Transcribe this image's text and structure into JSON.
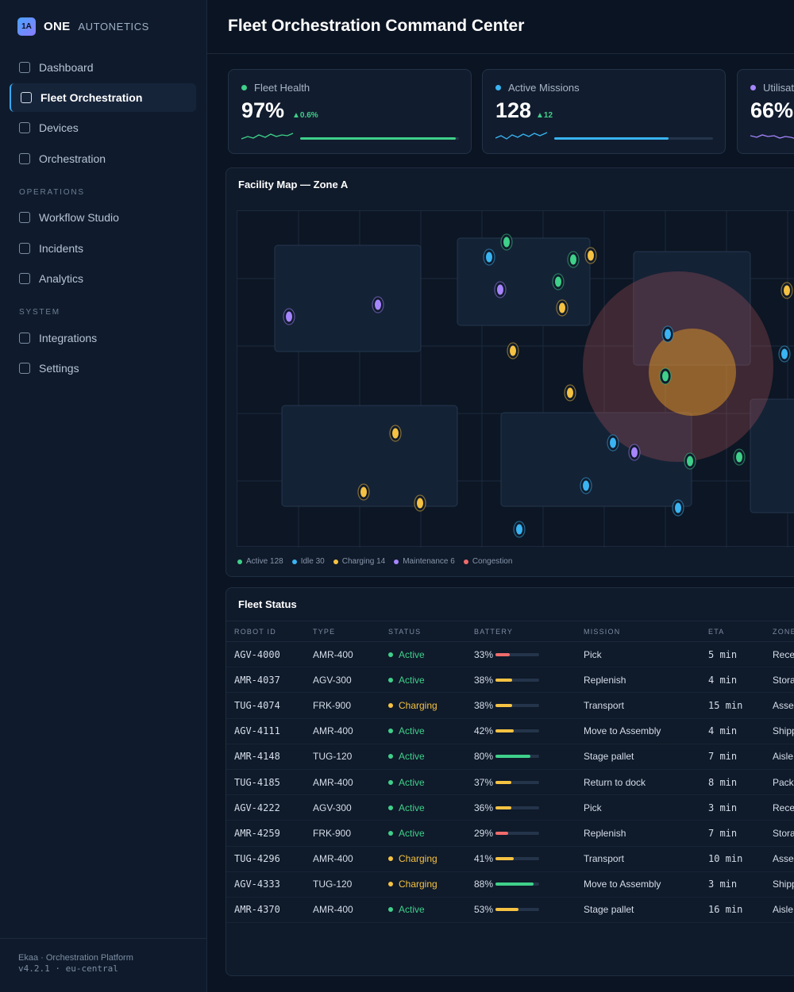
{
  "brand": {
    "logo": "1A",
    "name": "ONE",
    "subtitle": "AUTONETICS"
  },
  "sidebar": {
    "items": [
      {
        "label": "Dashboard",
        "active": false
      },
      {
        "label": "Fleet Orchestration",
        "active": true
      },
      {
        "label": "Devices",
        "active": false
      },
      {
        "label": "Orchestration",
        "active": false
      }
    ],
    "sections": [
      {
        "title": "OPERATIONS",
        "items": [
          {
            "label": "Workflow Studio"
          },
          {
            "label": "Incidents"
          },
          {
            "label": "Analytics"
          }
        ]
      },
      {
        "title": "SYSTEM",
        "items": [
          {
            "label": "Integrations"
          },
          {
            "label": "Settings"
          }
        ]
      }
    ],
    "footer": {
      "line1": "Ekaa · Orchestration Platform",
      "line2": "v4.2.1 · eu-central"
    }
  },
  "header": {
    "title": "Fleet Orchestration Command Center"
  },
  "kpis": [
    {
      "label": "Fleet Health",
      "value": "97%",
      "delta": "▲0.6%",
      "color": "#3fd08a",
      "progress": 0.98
    },
    {
      "label": "Active Missions",
      "value": "128",
      "delta": "▲12",
      "color": "#3ab4f2",
      "progress": 0.72
    },
    {
      "label": "Utilisation",
      "value": "66%",
      "delta": "",
      "color": "#a685ff",
      "progress": 0.66
    }
  ],
  "map": {
    "title": "Facility Map — Zone A",
    "legend": [
      {
        "label": "Active 128",
        "color": "#3fd08a"
      },
      {
        "label": "Idle 30",
        "color": "#3ab4f2"
      },
      {
        "label": "Charging 14",
        "color": "#f5c242"
      },
      {
        "label": "Maintenance 6",
        "color": "#a685ff"
      },
      {
        "label": "Congestion",
        "color": "#f06b6b"
      }
    ]
  },
  "fleet": {
    "title": "Fleet Status",
    "columns": [
      "ROBOT ID",
      "TYPE",
      "STATUS",
      "BATTERY",
      "MISSION",
      "ETA",
      "ZONE"
    ],
    "rows": [
      {
        "id": "AGV-4000",
        "type": "AMR-400",
        "status": "Active",
        "battery": 33,
        "mission": "Pick",
        "eta": "5 min",
        "zone": "Rece"
      },
      {
        "id": "AMR-4037",
        "type": "AGV-300",
        "status": "Active",
        "battery": 38,
        "mission": "Replenish",
        "eta": "4 min",
        "zone": "Stora"
      },
      {
        "id": "TUG-4074",
        "type": "FRK-900",
        "status": "Charging",
        "battery": 38,
        "mission": "Transport",
        "eta": "15 min",
        "zone": "Asse"
      },
      {
        "id": "AGV-4111",
        "type": "AMR-400",
        "status": "Active",
        "battery": 42,
        "mission": "Move to Assembly",
        "eta": "4 min",
        "zone": "Shipp"
      },
      {
        "id": "AMR-4148",
        "type": "TUG-120",
        "status": "Active",
        "battery": 80,
        "mission": "Stage pallet",
        "eta": "7 min",
        "zone": "Aisle"
      },
      {
        "id": "TUG-4185",
        "type": "AMR-400",
        "status": "Active",
        "battery": 37,
        "mission": "Return to dock",
        "eta": "8 min",
        "zone": "Pack"
      },
      {
        "id": "AGV-4222",
        "type": "AGV-300",
        "status": "Active",
        "battery": 36,
        "mission": "Pick",
        "eta": "3 min",
        "zone": "Rece"
      },
      {
        "id": "AMR-4259",
        "type": "FRK-900",
        "status": "Active",
        "battery": 29,
        "mission": "Replenish",
        "eta": "7 min",
        "zone": "Stora"
      },
      {
        "id": "TUG-4296",
        "type": "AMR-400",
        "status": "Charging",
        "battery": 41,
        "mission": "Transport",
        "eta": "10 min",
        "zone": "Asse"
      },
      {
        "id": "AGV-4333",
        "type": "TUG-120",
        "status": "Charging",
        "battery": 88,
        "mission": "Move to Assembly",
        "eta": "3 min",
        "zone": "Shipp"
      },
      {
        "id": "AMR-4370",
        "type": "AMR-400",
        "status": "Active",
        "battery": 53,
        "mission": "Stage pallet",
        "eta": "16 min",
        "zone": "Aisle"
      }
    ]
  },
  "colors": {
    "active": "#3fd08a",
    "idle": "#3ab4f2",
    "charging": "#f5c242",
    "maintenance": "#a685ff",
    "congestion": "#f06b6b",
    "accent": "#3aa8f0"
  }
}
